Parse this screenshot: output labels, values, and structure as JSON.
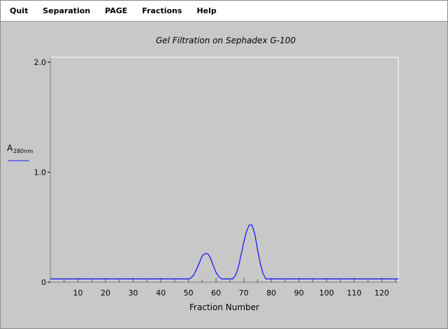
{
  "menu": {
    "items": [
      {
        "label": "Quit"
      },
      {
        "label": "Separation"
      },
      {
        "label": "PAGE"
      },
      {
        "label": "Fractions"
      },
      {
        "label": "Help"
      }
    ]
  },
  "colors": {
    "background": "#c8c8c8",
    "plot_background": "#c8c8c8",
    "line": "#1a1aff",
    "axis": "#000000"
  },
  "chart_data": {
    "type": "line",
    "title": "Gel Filtration on Sephadex G-100",
    "xlabel": "Fraction Number",
    "ylabel_main": "A",
    "ylabel_sub": "280nm",
    "xlim": [
      0,
      126
    ],
    "ylim": [
      0,
      2.0
    ],
    "x_ticks": [
      10,
      20,
      30,
      40,
      50,
      60,
      70,
      80,
      90,
      100,
      110,
      120
    ],
    "x_ticks_labels": [
      "10",
      "20",
      "30",
      "40",
      "50",
      "60",
      "70",
      "80",
      "90",
      "100",
      "110",
      "120"
    ],
    "y_ticks": [
      0,
      1.0,
      2.0
    ],
    "y_ticks_labels": [
      "0",
      "1.0",
      "2.0"
    ],
    "grid": false,
    "legend": "left",
    "series": [
      {
        "name": "A280nm",
        "points": [
          [
            0,
            0.03
          ],
          [
            50,
            0.03
          ],
          [
            51,
            0.04
          ],
          [
            52,
            0.07
          ],
          [
            53,
            0.12
          ],
          [
            54,
            0.18
          ],
          [
            55,
            0.24
          ],
          [
            56,
            0.26
          ],
          [
            57,
            0.26
          ],
          [
            58,
            0.22
          ],
          [
            59,
            0.15
          ],
          [
            60,
            0.09
          ],
          [
            61,
            0.05
          ],
          [
            62,
            0.03
          ],
          [
            66,
            0.03
          ],
          [
            67,
            0.06
          ],
          [
            68,
            0.13
          ],
          [
            69,
            0.24
          ],
          [
            70,
            0.36
          ],
          [
            71,
            0.46
          ],
          [
            72,
            0.52
          ],
          [
            73,
            0.52
          ],
          [
            74,
            0.44
          ],
          [
            75,
            0.3
          ],
          [
            76,
            0.17
          ],
          [
            77,
            0.08
          ],
          [
            78,
            0.03
          ],
          [
            126,
            0.03
          ]
        ]
      }
    ]
  }
}
